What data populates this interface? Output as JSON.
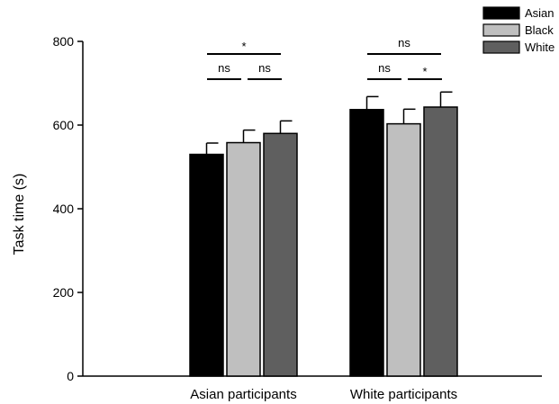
{
  "chart_data": {
    "type": "bar",
    "title": "",
    "xlabel": "",
    "ylabel": "Task time (s)",
    "ylim": [
      0,
      800
    ],
    "yticks": [
      0,
      200,
      400,
      600,
      800
    ],
    "grid": false,
    "legend_position": "top-right",
    "categories": [
      "Asian participants",
      "White participants"
    ],
    "series": [
      {
        "name": "Asian",
        "color": "#000000",
        "values": [
          530,
          637
        ],
        "errors": [
          27,
          31
        ]
      },
      {
        "name": "Black",
        "color": "#bfbfbf",
        "values": [
          558,
          603
        ],
        "errors": [
          30,
          35
        ]
      },
      {
        "name": "White",
        "color": "#5f5f5f",
        "values": [
          580,
          643
        ],
        "errors": [
          30,
          36
        ]
      }
    ],
    "significance": [
      {
        "category": 0,
        "from": 0,
        "to": 2,
        "label": "*"
      },
      {
        "category": 0,
        "from": 0,
        "to": 1,
        "label": "ns"
      },
      {
        "category": 0,
        "from": 1,
        "to": 2,
        "label": "ns"
      },
      {
        "category": 1,
        "from": 0,
        "to": 2,
        "label": "ns"
      },
      {
        "category": 1,
        "from": 0,
        "to": 1,
        "label": "ns"
      },
      {
        "category": 1,
        "from": 1,
        "to": 2,
        "label": "*"
      }
    ]
  }
}
